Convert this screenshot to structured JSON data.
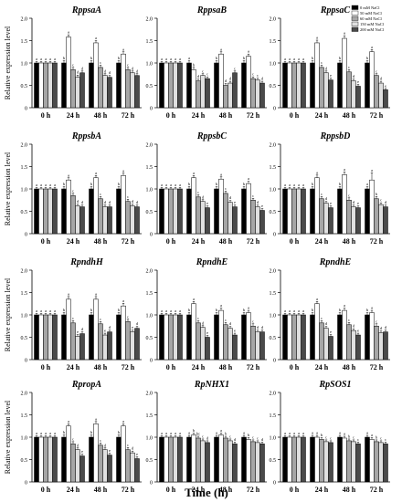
{
  "figure": {
    "ylabel": "Relative expression level",
    "xlabel": "Time (h)"
  },
  "chart_data": {
    "type": "bar",
    "categories": [
      "0 h",
      "24 h",
      "48 h",
      "72 h"
    ],
    "ylim": [
      0,
      2.0
    ],
    "yticks": [
      "0",
      "0.5",
      "1.0",
      "1.5",
      "2.0"
    ],
    "ylabel": "Relative expression level",
    "xlabel": "Time (h)",
    "legend": {
      "placement": "top-right of first row, right panel",
      "entries": [
        "0 mM NaCl",
        "50 mM NaCl",
        "60 mM NaCl",
        "150 mM NaCl",
        "200 mM NaCl"
      ]
    },
    "series_colors": [
      "#000000",
      "#ffffff",
      "#a6a6a6",
      "#e0e0e0",
      "#4a4a4a"
    ],
    "panels": [
      {
        "title": "RppsaA",
        "values": [
          [
            1.0,
            1.0,
            1.0,
            1.0,
            1.0
          ],
          [
            1.0,
            1.58,
            0.85,
            0.68,
            0.78
          ],
          [
            1.0,
            1.45,
            0.9,
            0.72,
            0.68
          ],
          [
            1.0,
            1.2,
            0.85,
            0.78,
            0.72
          ]
        ],
        "errors": [
          [
            0.03,
            0.03,
            0.03,
            0.03,
            0.03
          ],
          [
            0.05,
            0.05,
            0.05,
            0.05,
            0.04
          ],
          [
            0.05,
            0.05,
            0.05,
            0.04,
            0.04
          ],
          [
            0.05,
            0.05,
            0.05,
            0.04,
            0.04
          ]
        ],
        "sig": [
          [
            "a",
            "a",
            "a",
            "a",
            "a"
          ],
          [
            "b",
            "a",
            "c",
            "d",
            "d"
          ],
          [
            "b",
            "a",
            "c",
            "d",
            "d"
          ],
          [
            "b",
            "a",
            "c",
            "d",
            "d"
          ]
        ]
      },
      {
        "title": "RppsaB",
        "values": [
          [
            1.0,
            1.0,
            1.0,
            1.0,
            1.0
          ],
          [
            1.0,
            0.85,
            0.6,
            0.72,
            0.65
          ],
          [
            1.0,
            1.2,
            0.5,
            0.55,
            0.78
          ],
          [
            1.0,
            1.15,
            0.65,
            0.62,
            0.55
          ]
        ],
        "errors": [
          [
            0.03,
            0.03,
            0.03,
            0.03,
            0.03
          ],
          [
            0.05,
            0.05,
            0.04,
            0.04,
            0.04
          ],
          [
            0.05,
            0.05,
            0.04,
            0.04,
            0.04
          ],
          [
            0.05,
            0.05,
            0.04,
            0.04,
            0.04
          ]
        ],
        "sig": [
          [
            "a",
            "a",
            "a",
            "a",
            "a"
          ],
          [
            "a",
            "b",
            "d",
            "c",
            "c"
          ],
          [
            "b",
            "a",
            "d",
            "d",
            "c"
          ],
          [
            "b",
            "a",
            "c",
            "c",
            "d"
          ]
        ]
      },
      {
        "title": "RppsaC",
        "values": [
          [
            1.0,
            1.0,
            1.0,
            1.0,
            1.0
          ],
          [
            1.0,
            1.45,
            0.9,
            0.78,
            0.62
          ],
          [
            1.0,
            1.55,
            0.8,
            0.6,
            0.48
          ],
          [
            1.0,
            1.25,
            0.72,
            0.55,
            0.4
          ]
        ],
        "errors": [
          [
            0.03,
            0.03,
            0.03,
            0.03,
            0.03
          ],
          [
            0.05,
            0.06,
            0.05,
            0.04,
            0.04
          ],
          [
            0.05,
            0.06,
            0.05,
            0.04,
            0.04
          ],
          [
            0.05,
            0.05,
            0.04,
            0.04,
            0.03
          ]
        ],
        "sig": [
          [
            "a",
            "a",
            "a",
            "a",
            "a"
          ],
          [
            "b",
            "a",
            "c",
            "d",
            "e"
          ],
          [
            "b",
            "a",
            "c",
            "d",
            "e"
          ],
          [
            "b",
            "a",
            "c",
            "d",
            "e"
          ]
        ]
      },
      {
        "title": "RppsbA",
        "values": [
          [
            1.0,
            1.0,
            1.0,
            1.0,
            1.0
          ],
          [
            1.0,
            1.2,
            0.85,
            0.62,
            0.6
          ],
          [
            1.0,
            1.25,
            0.78,
            0.6,
            0.6
          ],
          [
            1.0,
            1.3,
            0.72,
            0.62,
            0.6
          ]
        ],
        "errors": [
          [
            0.03,
            0.03,
            0.03,
            0.03,
            0.03
          ],
          [
            0.05,
            0.05,
            0.05,
            0.04,
            0.04
          ],
          [
            0.05,
            0.05,
            0.05,
            0.04,
            0.04
          ],
          [
            0.05,
            0.05,
            0.05,
            0.04,
            0.04
          ]
        ],
        "sig": [
          [
            "a",
            "a",
            "a",
            "a",
            "a"
          ],
          [
            "b",
            "a",
            "c",
            "d",
            "d"
          ],
          [
            "b",
            "a",
            "c",
            "d",
            "d"
          ],
          [
            "b",
            "a",
            "c",
            "d",
            "d"
          ]
        ]
      },
      {
        "title": "RppsbC",
        "values": [
          [
            1.0,
            1.0,
            1.0,
            1.0,
            1.0
          ],
          [
            1.0,
            1.25,
            0.82,
            0.72,
            0.58
          ],
          [
            1.0,
            1.22,
            0.9,
            0.7,
            0.6
          ],
          [
            1.0,
            1.12,
            0.75,
            0.6,
            0.52
          ]
        ],
        "errors": [
          [
            0.03,
            0.03,
            0.03,
            0.03,
            0.03
          ],
          [
            0.05,
            0.05,
            0.05,
            0.04,
            0.04
          ],
          [
            0.05,
            0.05,
            0.05,
            0.04,
            0.04
          ],
          [
            0.05,
            0.05,
            0.04,
            0.04,
            0.04
          ]
        ],
        "sig": [
          [
            "a",
            "a",
            "a",
            "a",
            "a"
          ],
          [
            "b",
            "a",
            "c",
            "d",
            "e"
          ],
          [
            "b",
            "a",
            "c",
            "d",
            "e"
          ],
          [
            "b",
            "a",
            "c",
            "d",
            "e"
          ]
        ]
      },
      {
        "title": "RppsbD",
        "values": [
          [
            1.0,
            1.0,
            1.0,
            1.0,
            1.0
          ],
          [
            1.0,
            1.25,
            0.78,
            0.68,
            0.58
          ],
          [
            1.0,
            1.32,
            0.75,
            0.6,
            0.58
          ],
          [
            1.0,
            1.2,
            0.78,
            0.65,
            0.6
          ]
        ],
        "errors": [
          [
            0.03,
            0.03,
            0.03,
            0.03,
            0.03
          ],
          [
            0.05,
            0.06,
            0.05,
            0.04,
            0.04
          ],
          [
            0.05,
            0.06,
            0.05,
            0.04,
            0.04
          ],
          [
            0.05,
            0.16,
            0.05,
            0.04,
            0.04
          ]
        ],
        "sig": [
          [
            "a",
            "a",
            "a",
            "a",
            "a"
          ],
          [
            "b",
            "a",
            "c",
            "d",
            "e"
          ],
          [
            "b",
            "a",
            "c",
            "d",
            "e"
          ],
          [
            "a",
            "a",
            "b",
            "c",
            "d"
          ]
        ]
      },
      {
        "title": "RpndhH",
        "values": [
          [
            1.0,
            1.0,
            1.0,
            1.0,
            1.0
          ],
          [
            1.0,
            1.35,
            0.82,
            0.52,
            0.58
          ],
          [
            1.0,
            1.35,
            0.8,
            0.55,
            0.62
          ],
          [
            1.0,
            1.2,
            0.85,
            0.62,
            0.7
          ]
        ],
        "errors": [
          [
            0.03,
            0.03,
            0.03,
            0.03,
            0.03
          ],
          [
            0.05,
            0.06,
            0.05,
            0.04,
            0.04
          ],
          [
            0.05,
            0.06,
            0.05,
            0.04,
            0.04
          ],
          [
            0.05,
            0.06,
            0.05,
            0.04,
            0.04
          ]
        ],
        "sig": [
          [
            "a",
            "a",
            "a",
            "a",
            "a"
          ],
          [
            "b",
            "a",
            "c",
            "e",
            "d"
          ],
          [
            "b",
            "a",
            "c",
            "e",
            "d"
          ],
          [
            "b",
            "a",
            "c",
            "e",
            "d"
          ]
        ]
      },
      {
        "title": "RpndhE",
        "values": [
          [
            1.0,
            1.0,
            1.0,
            1.0,
            1.0
          ],
          [
            1.0,
            1.25,
            0.82,
            0.72,
            0.5
          ],
          [
            1.0,
            1.1,
            0.78,
            0.7,
            0.55
          ],
          [
            1.0,
            1.05,
            0.75,
            0.62,
            0.62
          ]
        ],
        "errors": [
          [
            0.03,
            0.03,
            0.03,
            0.03,
            0.03
          ],
          [
            0.05,
            0.05,
            0.05,
            0.04,
            0.04
          ],
          [
            0.05,
            0.05,
            0.05,
            0.04,
            0.04
          ],
          [
            0.05,
            0.05,
            0.05,
            0.04,
            0.04
          ]
        ],
        "sig": [
          [
            "a",
            "a",
            "a",
            "a",
            "a"
          ],
          [
            "b",
            "a",
            "c",
            "d",
            "e"
          ],
          [
            "b",
            "a",
            "c",
            "d",
            "e"
          ],
          [
            "b",
            "a",
            "c",
            "d",
            "d"
          ]
        ]
      },
      {
        "title": "RpndhE",
        "values": [
          [
            1.0,
            1.0,
            1.0,
            1.0,
            1.0
          ],
          [
            1.0,
            1.25,
            0.82,
            0.7,
            0.52
          ],
          [
            1.0,
            1.1,
            0.78,
            0.65,
            0.55
          ],
          [
            1.0,
            1.05,
            0.75,
            0.6,
            0.62
          ]
        ],
        "errors": [
          [
            0.03,
            0.03,
            0.03,
            0.03,
            0.03
          ],
          [
            0.05,
            0.05,
            0.05,
            0.04,
            0.04
          ],
          [
            0.05,
            0.05,
            0.05,
            0.04,
            0.04
          ],
          [
            0.05,
            0.05,
            0.05,
            0.04,
            0.04
          ]
        ],
        "sig": [
          [
            "a",
            "a",
            "a",
            "a",
            "a"
          ],
          [
            "b",
            "a",
            "c",
            "d",
            "e"
          ],
          [
            "b",
            "a",
            "c",
            "d",
            "e"
          ],
          [
            "b",
            "a",
            "c",
            "d",
            "d"
          ]
        ]
      },
      {
        "title": "RpropA",
        "values": [
          [
            1.0,
            1.0,
            1.0,
            1.0,
            1.0
          ],
          [
            1.0,
            1.25,
            0.85,
            0.72,
            0.58
          ],
          [
            1.0,
            1.3,
            0.82,
            0.72,
            0.6
          ],
          [
            1.0,
            1.25,
            0.72,
            0.65,
            0.52
          ]
        ],
        "errors": [
          [
            0.03,
            0.03,
            0.03,
            0.03,
            0.03
          ],
          [
            0.05,
            0.05,
            0.05,
            0.04,
            0.04
          ],
          [
            0.05,
            0.05,
            0.05,
            0.04,
            0.04
          ],
          [
            0.05,
            0.05,
            0.05,
            0.04,
            0.04
          ]
        ],
        "sig": [
          [
            "a",
            "a",
            "a",
            "a",
            "a"
          ],
          [
            "b",
            "a",
            "c",
            "d",
            "e"
          ],
          [
            "b",
            "a",
            "c",
            "d",
            "e"
          ],
          [
            "b",
            "a",
            "c",
            "d",
            "e"
          ]
        ]
      },
      {
        "title": "RpNHX1",
        "values": [
          [
            1.0,
            1.0,
            1.0,
            1.0,
            1.0
          ],
          [
            1.0,
            1.05,
            0.98,
            0.92,
            0.88
          ],
          [
            1.0,
            1.05,
            0.98,
            0.92,
            0.85
          ],
          [
            1.0,
            0.95,
            0.9,
            0.88,
            0.85
          ]
        ],
        "errors": [
          [
            0.03,
            0.03,
            0.03,
            0.03,
            0.03
          ],
          [
            0.04,
            0.04,
            0.04,
            0.04,
            0.04
          ],
          [
            0.04,
            0.04,
            0.04,
            0.04,
            0.04
          ],
          [
            0.04,
            0.04,
            0.04,
            0.04,
            0.04
          ]
        ],
        "sig": [
          [
            "a",
            "a",
            "a",
            "a",
            "a"
          ],
          [
            "a",
            "b",
            "bc",
            "c",
            "d"
          ],
          [
            "a",
            "a",
            "b",
            "c",
            "d"
          ],
          [
            "a",
            "b",
            "c",
            "c",
            "d"
          ]
        ]
      },
      {
        "title": "RpSOS1",
        "values": [
          [
            1.0,
            1.0,
            1.0,
            1.0,
            1.0
          ],
          [
            1.0,
            1.0,
            0.95,
            0.9,
            0.88
          ],
          [
            1.0,
            0.98,
            0.92,
            0.9,
            0.85
          ],
          [
            1.0,
            0.95,
            0.9,
            0.88,
            0.85
          ]
        ],
        "errors": [
          [
            0.03,
            0.03,
            0.03,
            0.03,
            0.03
          ],
          [
            0.04,
            0.04,
            0.04,
            0.04,
            0.04
          ],
          [
            0.04,
            0.04,
            0.04,
            0.04,
            0.04
          ],
          [
            0.04,
            0.04,
            0.04,
            0.04,
            0.04
          ]
        ],
        "sig": [
          [
            "a",
            "a",
            "a",
            "a",
            "a"
          ],
          [
            "a",
            "a",
            "b",
            "c",
            "c"
          ],
          [
            "a",
            "a",
            "b",
            "c",
            "c"
          ],
          [
            "a",
            "a",
            "b",
            "c",
            "c"
          ]
        ]
      }
    ]
  }
}
